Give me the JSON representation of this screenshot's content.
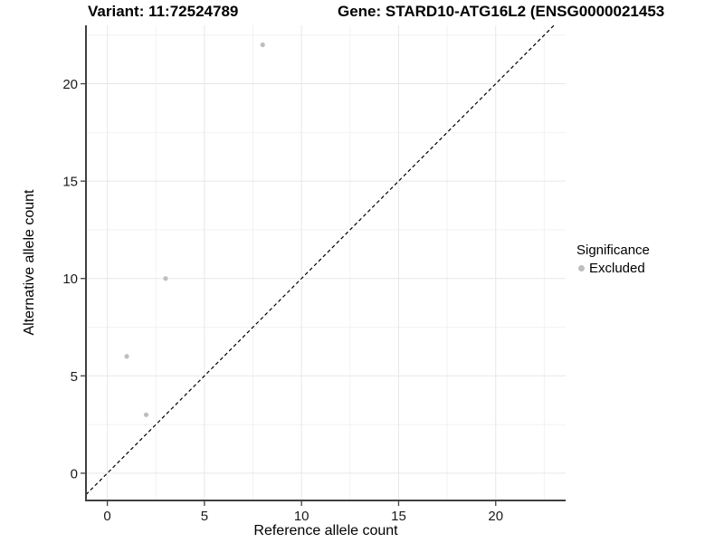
{
  "titles": {
    "variant": "Variant: 11:72524789",
    "gene": "Gene: STARD10-ATG16L2 (ENSG0000021453"
  },
  "axes": {
    "x": {
      "label": "Reference allele count"
    },
    "y": {
      "label": "Alternative allele count"
    }
  },
  "legend": {
    "title": "Significance",
    "entries": [
      {
        "label": "Excluded",
        "color": "#bebebe"
      }
    ]
  },
  "chart_data": {
    "type": "scatter",
    "title": "Variant: 11:72524789 — Gene: STARD10-ATG16L2 (ENSG0000021453",
    "xlabel": "Reference allele count",
    "ylabel": "Alternative allele count",
    "series": [
      {
        "name": "Excluded",
        "color": "#bebebe",
        "points": [
          {
            "x": 1,
            "y": 6
          },
          {
            "x": 2,
            "y": 3
          },
          {
            "x": 3,
            "y": 10
          },
          {
            "x": 8,
            "y": 22
          }
        ]
      }
    ],
    "identity_line": {
      "type": "y=x",
      "style": "dashed",
      "color": "#000000"
    },
    "xlim": [
      -1.1,
      23.6
    ],
    "ylim": [
      -1.4,
      23.0
    ],
    "x_ticks": [
      0,
      5,
      10,
      15,
      20
    ],
    "y_ticks": [
      0,
      5,
      10,
      15,
      20
    ],
    "minor_ticks": [
      2.5,
      7.5,
      12.5,
      17.5,
      22.5
    ],
    "grid": true,
    "legend_position": "right"
  },
  "colors": {
    "point": "#bebebe",
    "grid_major": "#e7e7e7",
    "grid_minor": "#f2f2f2",
    "axis_line": "#404040",
    "tick_text": "#1a1a1a",
    "background": "#ffffff"
  }
}
